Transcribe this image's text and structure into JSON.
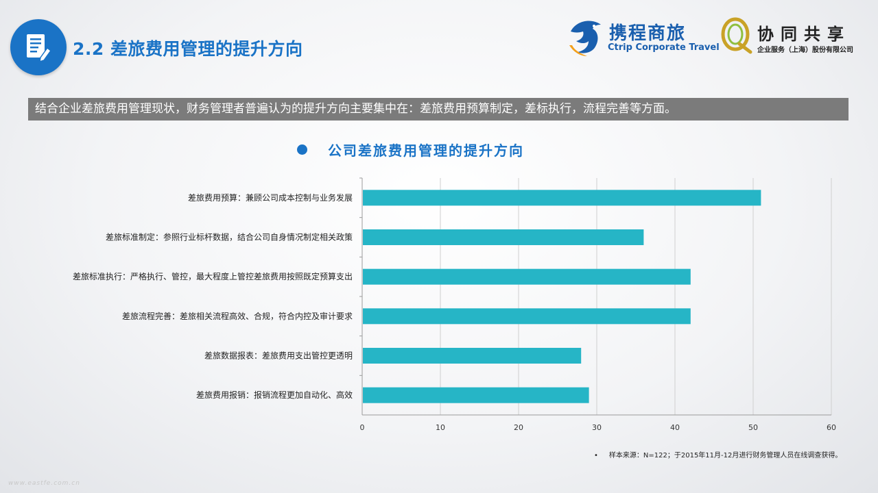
{
  "header": {
    "title": "2.2 差旅费用管理的提升方向",
    "icon": "document-pen-icon",
    "accent_color": "#1a73c6"
  },
  "logos": {
    "ctrip_cn": "携程商旅",
    "ctrip_en": "Ctrip Corporate Travel",
    "xietong_cn": "协同共享",
    "xietong_sub": "企业服务（上海）股份有限公司"
  },
  "summary": "结合企业差旅费用管理现状，财务管理者普遍认为的提升方向主要集中在：差旅费用预算制定，差标执行，流程完善等方面。",
  "chart_data": {
    "type": "bar",
    "orientation": "horizontal",
    "title": "公司差旅费用管理的提升方向",
    "categories": [
      "差旅费用预算：兼顾公司成本控制与业务发展",
      "差旅标准制定：参照行业标杆数据，结合公司自身情况制定相关政策",
      "差旅标准执行：严格执行、管控，最大程度上管控差旅费用按照既定预算支出",
      "差旅流程完善：差旅相关流程高效、合规，符合内控及审计要求",
      "差旅数据报表：差旅费用支出管控更透明",
      "差旅费用报销：报销流程更加自动化、高效"
    ],
    "values": [
      51,
      36,
      42,
      42,
      28,
      29
    ],
    "xlim": [
      0,
      60
    ],
    "xticks": [
      0,
      10,
      20,
      30,
      40,
      50,
      60
    ],
    "grid": true,
    "bar_color": "#26b5c6"
  },
  "footnote": "样本来源：N=122；于2015年11月-12月进行财务管理人员在线调查获得。",
  "footnote_bullet": "•",
  "watermark": "www.eastfe.com.cn"
}
